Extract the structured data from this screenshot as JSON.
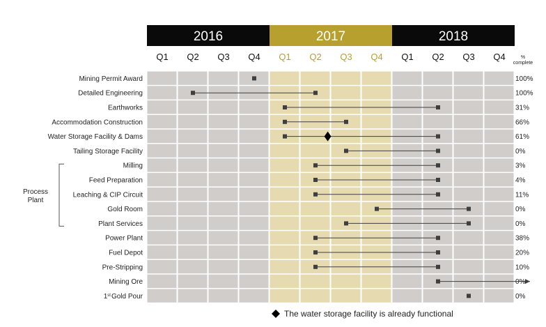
{
  "colors": {
    "year_dark": "#0a0a0a",
    "year_gold": "#b8a02e",
    "cell_grey": "#d0cdcb",
    "cell_gold": "#e6dab0",
    "marker": "#3f3f3f",
    "line": "#3f3f3f",
    "gold_text": "#b8a02e",
    "legend_marker": "#000000"
  },
  "chart_data": {
    "type": "gantt",
    "years": [
      "2016",
      "2017",
      "2018"
    ],
    "quarters": [
      "Q1",
      "Q2",
      "Q3",
      "Q4",
      "Q1",
      "Q2",
      "Q3",
      "Q4",
      "Q1",
      "Q2",
      "Q3",
      "Q4"
    ],
    "highlight_year": "2017",
    "percent_header_line1": "%",
    "percent_header_line2": "complete",
    "group": {
      "label_line1": "Process",
      "label_line2": "Plant",
      "first_task": 6,
      "last_task": 10
    },
    "tasks": [
      {
        "name": "Mining Permit Award",
        "start": 3.5,
        "end": null,
        "percent": "100%"
      },
      {
        "name": "Detailed Engineering",
        "start": 1.5,
        "end": 5.5,
        "percent": "100%"
      },
      {
        "name": "Earthworks",
        "start": 4.5,
        "end": 9.5,
        "percent": "31%"
      },
      {
        "name": "Accommodation Construction",
        "start": 4.5,
        "end": 6.5,
        "percent": "66%"
      },
      {
        "name": "Water Storage Facility & Dams",
        "start": 4.5,
        "end": 9.5,
        "percent": "61%",
        "milestone": 5.9
      },
      {
        "name": "Tailing Storage Facility",
        "start": 6.5,
        "end": 9.5,
        "percent": "0%"
      },
      {
        "name": "Milling",
        "start": 5.5,
        "end": 9.5,
        "percent": "3%"
      },
      {
        "name": "Feed Preparation",
        "start": 5.5,
        "end": 9.5,
        "percent": "4%"
      },
      {
        "name": "Leaching & CIP Circuit",
        "start": 5.5,
        "end": 9.5,
        "percent": "11%"
      },
      {
        "name": "Gold Room",
        "start": 7.5,
        "end": 10.5,
        "percent": "0%"
      },
      {
        "name": "Plant Services",
        "start": 6.5,
        "end": 10.5,
        "percent": "0%"
      },
      {
        "name": "Power Plant",
        "start": 5.5,
        "end": 9.5,
        "percent": "38%"
      },
      {
        "name": "Fuel Depot",
        "start": 5.5,
        "end": 9.5,
        "percent": "20%"
      },
      {
        "name": "Pre-Stripping",
        "start": 5.5,
        "end": 9.5,
        "percent": "10%"
      },
      {
        "name": "Mining Ore",
        "start": 9.5,
        "end": 12.5,
        "percent": "0%",
        "arrow": true
      },
      {
        "name": "1st Gold Pour",
        "name_main": "Gold Pour",
        "name_sup": "st",
        "name_prefix": "1",
        "start": 10.5,
        "end": null,
        "percent": "0%"
      }
    ],
    "legend": {
      "marker": "diamond",
      "text": "The water storage facility is already functional"
    }
  }
}
